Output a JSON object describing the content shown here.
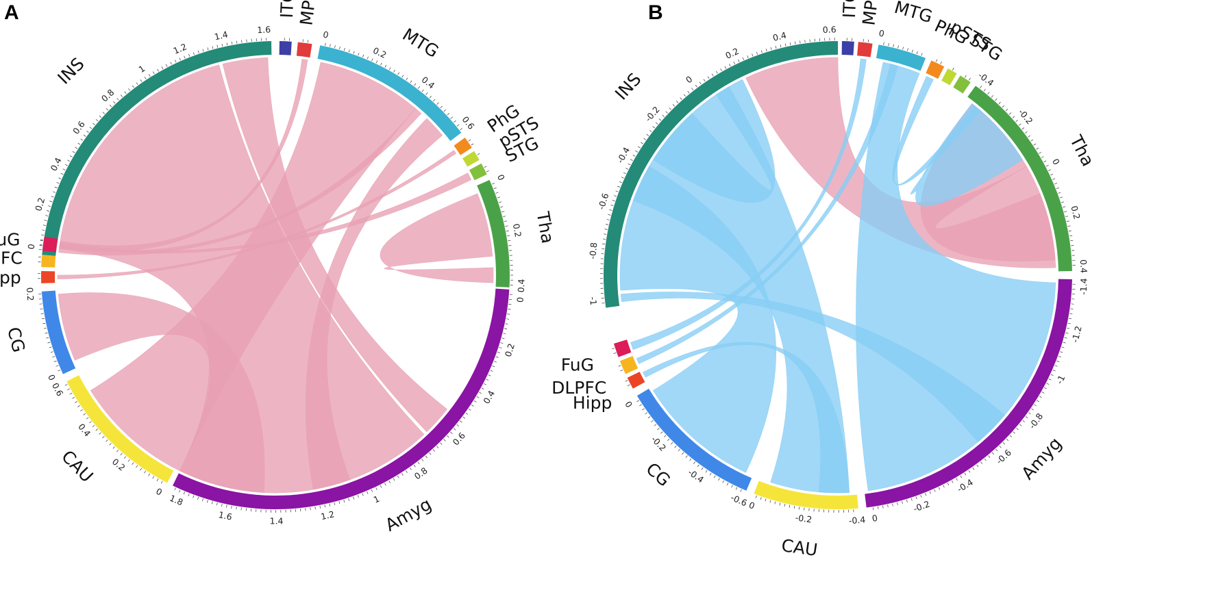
{
  "chart_data": [
    {
      "type": "chord",
      "panel": "A",
      "colors": {
        "ribbon": "#e8a0b3",
        "ribbon_edge": "#d85a7f"
      },
      "regions": [
        {
          "name": "INS",
          "color": "#238b78",
          "ticks": [
            "0",
            "0.2",
            "0.4",
            "0.6",
            "0.8",
            "1",
            "1.2",
            "1.4",
            "1.6"
          ]
        },
        {
          "name": "ITG",
          "color": "#3b3fa6",
          "ticks": []
        },
        {
          "name": "MPFC",
          "color": "#e23b3b",
          "ticks": []
        },
        {
          "name": "MTG",
          "color": "#3bb2cf",
          "ticks": [
            "0",
            "0.2",
            "0.4",
            "0.6"
          ]
        },
        {
          "name": "PhG",
          "color": "#f38a1e",
          "ticks": []
        },
        {
          "name": "pSTS",
          "color": "#bfd832",
          "ticks": []
        },
        {
          "name": "STG",
          "color": "#82bf3c",
          "ticks": []
        },
        {
          "name": "Tha",
          "color": "#4aa248",
          "ticks": [
            "0",
            "0.2",
            "0.4"
          ]
        },
        {
          "name": "Amyg",
          "color": "#8a14a3",
          "ticks": [
            "0",
            "0.2",
            "0.4",
            "0.6",
            "0.8",
            "1",
            "1.2",
            "1.4",
            "1.6",
            "1.8"
          ]
        },
        {
          "name": "CAU",
          "color": "#f5e53a",
          "ticks": [
            "0",
            "0.2",
            "0.4",
            "0.6"
          ]
        },
        {
          "name": "CG",
          "color": "#3f88e8",
          "ticks": [
            "0",
            "0.2"
          ]
        },
        {
          "name": "Hipp",
          "color": "#ec4426",
          "ticks": []
        },
        {
          "name": "DLPFC",
          "color": "#f6b520",
          "ticks": []
        },
        {
          "name": "FuG",
          "color": "#dc1d5a",
          "ticks": []
        }
      ],
      "links": [
        {
          "from": "INS",
          "to": "Amyg",
          "sign": "positive"
        },
        {
          "from": "MTG",
          "to": "CAU",
          "sign": "positive"
        },
        {
          "from": "MTG",
          "to": "Amyg",
          "sign": "positive"
        },
        {
          "from": "Tha",
          "to": "Tha",
          "sign": "positive"
        },
        {
          "from": "CG",
          "to": "Amyg",
          "sign": "positive"
        },
        {
          "from": "MPFC",
          "to": "FuG",
          "sign": "positive"
        },
        {
          "from": "MTG",
          "to": "FuG",
          "sign": "positive"
        },
        {
          "from": "STG",
          "to": "FuG",
          "sign": "positive"
        },
        {
          "from": "PhG",
          "to": "Hipp",
          "sign": "positive"
        },
        {
          "from": "INS",
          "to": "Amyg",
          "sign": "positive"
        }
      ]
    },
    {
      "type": "chord",
      "panel": "B",
      "colors": {
        "ribbon_positive": "#e8a0b3",
        "ribbon_negative": "#87cdf5"
      },
      "regions": [
        {
          "name": "INS",
          "color": "#238b78",
          "ticks": [
            "-1",
            "-0.8",
            "-0.6",
            "-0.4",
            "-0.2",
            "0",
            "0.2",
            "0.4",
            "0.6"
          ]
        },
        {
          "name": "ITG",
          "color": "#3b3fa6",
          "ticks": []
        },
        {
          "name": "MPFC",
          "color": "#e23b3b",
          "ticks": []
        },
        {
          "name": "MTG",
          "color": "#3bb2cf",
          "ticks": [
            "0"
          ]
        },
        {
          "name": "PhG",
          "color": "#f38a1e",
          "ticks": []
        },
        {
          "name": "pSTS",
          "color": "#bfd832",
          "ticks": []
        },
        {
          "name": "STG",
          "color": "#82bf3c",
          "ticks": []
        },
        {
          "name": "Tha",
          "color": "#4aa248",
          "ticks": [
            "-0.4",
            "-0.2",
            "0",
            "0.2",
            "0.4"
          ]
        },
        {
          "name": "Amyg",
          "color": "#8a14a3",
          "ticks": [
            "-1.4",
            "-1.2",
            "-1",
            "-0.8",
            "-0.6",
            "-0.4",
            "-0.2",
            "0"
          ]
        },
        {
          "name": "CAU",
          "color": "#f5e53a",
          "ticks": [
            "-0.4",
            "-0.2",
            "0"
          ]
        },
        {
          "name": "CG",
          "color": "#3f88e8",
          "ticks": [
            "-0.6",
            "-0.4",
            "-0.2",
            "0"
          ]
        },
        {
          "name": "Hipp",
          "color": "#ec4426",
          "ticks": []
        },
        {
          "name": "DLPFC",
          "color": "#f6b520",
          "ticks": []
        },
        {
          "name": "FuG",
          "color": "#dc1d5a",
          "ticks": []
        }
      ],
      "links": [
        {
          "from": "INS",
          "to": "Tha",
          "sign": "positive"
        },
        {
          "from": "Tha",
          "to": "Tha",
          "sign": "positive"
        },
        {
          "from": "INS",
          "to": "CAU",
          "sign": "negative"
        },
        {
          "from": "INS",
          "to": "CG",
          "sign": "negative"
        },
        {
          "from": "INS",
          "to": "INS",
          "sign": "negative"
        },
        {
          "from": "MTG",
          "to": "Amyg",
          "sign": "negative"
        },
        {
          "from": "Tha",
          "to": "Tha",
          "sign": "negative"
        },
        {
          "from": "CAU",
          "to": "Hipp",
          "sign": "negative"
        },
        {
          "from": "MPFC",
          "to": "FuG",
          "sign": "negative"
        },
        {
          "from": "MTG",
          "to": "DLPFC",
          "sign": "negative"
        },
        {
          "from": "PhG",
          "to": "Tha",
          "sign": "negative"
        },
        {
          "from": "INS",
          "to": "Amyg",
          "sign": "negative"
        }
      ]
    }
  ]
}
